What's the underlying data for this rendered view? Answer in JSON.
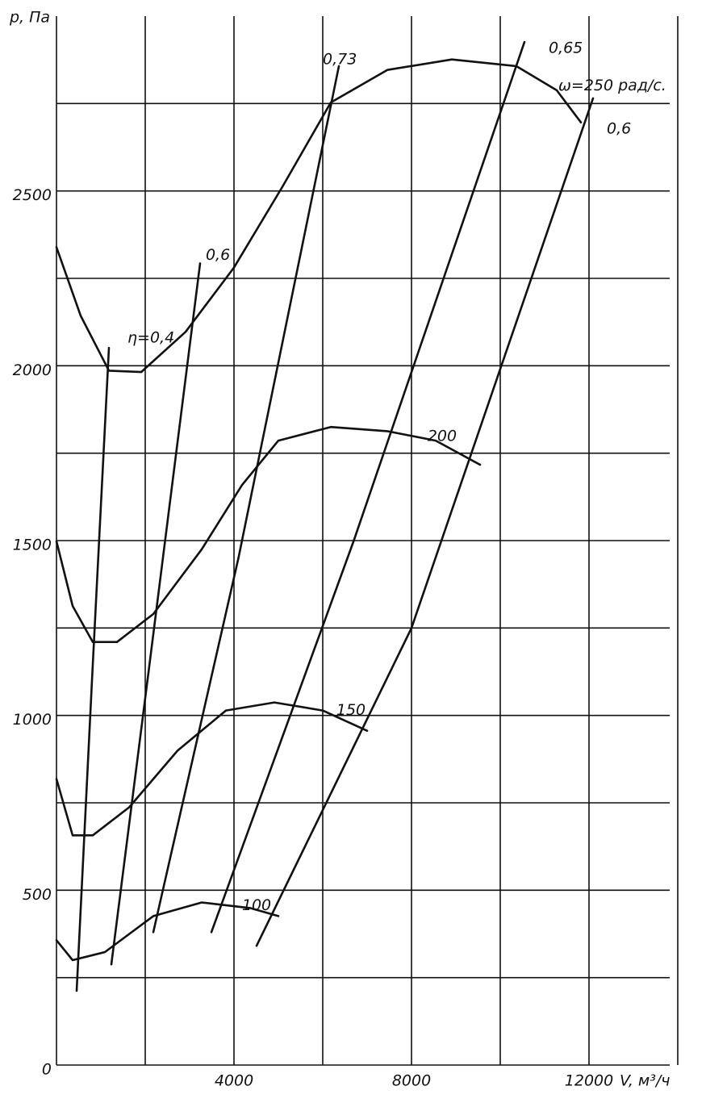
{
  "chart_data": {
    "type": "line",
    "y_label": "p, Па",
    "x_label": "V, м³/ч",
    "xlim": [
      0,
      14000
    ],
    "ylim": [
      0,
      3000
    ],
    "xticks": [
      4000,
      8000,
      12000
    ],
    "yticks": [
      0,
      500,
      1000,
      1500,
      2000,
      2500
    ],
    "xgrid": [
      0,
      2000,
      4000,
      6000,
      8000,
      10000,
      12000,
      14000
    ],
    "ygrid": [
      0,
      250,
      500,
      750,
      1000,
      1250,
      1500,
      1750,
      2000,
      2250,
      2500,
      2750
    ],
    "series": [
      {
        "name": "ω=250 рад/с.",
        "color": "#111111",
        "x": [
          0,
          545,
          1182,
          1909,
          2909,
          4000,
          5091,
          6182,
          7455,
          8909,
          10364,
          11273,
          11818
        ],
        "values": [
          2339,
          2143,
          1986,
          1982,
          2097,
          2281,
          2512,
          2753,
          2846,
          2876,
          2857,
          2788,
          2696
        ]
      },
      {
        "name": "200",
        "color": "#111111",
        "x": [
          0,
          364,
          818,
          1364,
          2182,
          3273,
          4182,
          5000,
          6182,
          7455,
          8545,
          9545
        ],
        "values": [
          1498,
          1313,
          1210,
          1210,
          1290,
          1475,
          1659,
          1786,
          1825,
          1813,
          1786,
          1717
        ]
      },
      {
        "name": "150",
        "color": "#111111",
        "x": [
          0,
          364,
          818,
          1636,
          2727,
          3818,
          4909,
          6000,
          7000
        ],
        "values": [
          818,
          657,
          657,
          737,
          899,
          1014,
          1037,
          1014,
          956
        ]
      },
      {
        "name": "100",
        "color": "#111111",
        "x": [
          0,
          364,
          1091,
          2182,
          3273,
          4364,
          5000
        ],
        "values": [
          357,
          300,
          323,
          426,
          465,
          449,
          426
        ]
      },
      {
        "name": "η=0,4",
        "color": "#111111",
        "x": [
          455,
          800,
          1182
        ],
        "values": [
          212,
          1100,
          2051
        ]
      },
      {
        "name": "0,6",
        "color": "#111111",
        "x": [
          1236,
          2100,
          3236
        ],
        "values": [
          288,
          1150,
          2293
        ]
      },
      {
        "name": "0,73",
        "color": "#111111",
        "x": [
          2182,
          4100,
          6364
        ],
        "values": [
          380,
          1450,
          2857
        ]
      },
      {
        "name": "0,65",
        "color": "#111111",
        "x": [
          3491,
          6700,
          10545
        ],
        "values": [
          380,
          1500,
          2926
        ]
      },
      {
        "name": "0,6",
        "color": "#111111",
        "x": [
          4509,
          8000,
          12091
        ],
        "values": [
          341,
          1250,
          2765
        ]
      }
    ]
  }
}
